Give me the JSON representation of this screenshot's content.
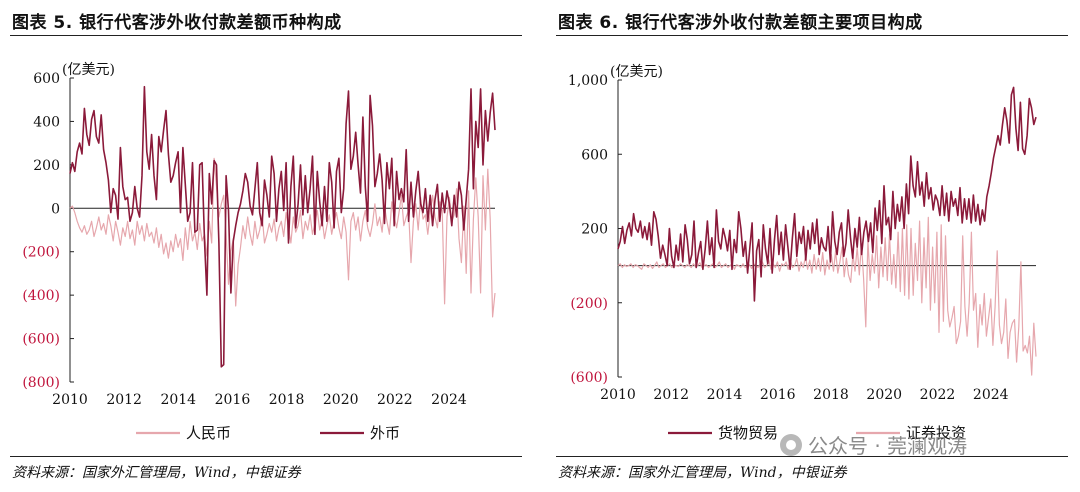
{
  "colors": {
    "dark_series": "#8B1A3A",
    "light_series": "#E6A7AD",
    "negative_tick": "#C0143C",
    "axis": "#222222"
  },
  "watermark": {
    "text": "公众号 · 莞澜观涛",
    "icon": "wechat-icon"
  },
  "chart_data": [
    {
      "type": "line",
      "title": "图表 5. 银行代客涉外收付款差额币种构成",
      "unit_label": "(亿美元)",
      "source": "资料来源：国家外汇管理局，Wind，中银证券",
      "ylim": [
        -800,
        600
      ],
      "yticks": [
        600,
        400,
        200,
        0,
        -200,
        -400,
        -600,
        -800
      ],
      "ytick_labels": [
        "600",
        "400",
        "200",
        "0",
        "(200)",
        "(400)",
        "(600)",
        "(800)"
      ],
      "xlim": [
        2010,
        2025.7
      ],
      "xticks": [
        "2010",
        "2012",
        "2014",
        "2016",
        "2018",
        "2020",
        "2022",
        "2024"
      ],
      "legend_position": "bottom",
      "series": [
        {
          "name": "人民币",
          "color": "#E6A7AD",
          "values": [
            0,
            10,
            -20,
            -60,
            -90,
            -110,
            -80,
            -120,
            -100,
            -60,
            -130,
            -90,
            -40,
            -100,
            -70,
            -120,
            -30,
            -80,
            -150,
            -60,
            -110,
            -170,
            -90,
            -130,
            -60,
            -140,
            -100,
            -170,
            -60,
            -120,
            -80,
            -150,
            -70,
            -130,
            -110,
            -160,
            -90,
            -180,
            -120,
            -210,
            -160,
            -230,
            -150,
            -200,
            -120,
            -180,
            -140,
            -240,
            -90,
            -190,
            -60,
            -150,
            -110,
            -190,
            -70,
            -150,
            -120,
            -220,
            -60,
            -160,
            230,
            100,
            -40,
            20,
            60,
            -120,
            -350,
            -200,
            -140,
            -450,
            -260,
            -180,
            -80,
            -140,
            -40,
            -120,
            -170,
            -60,
            -140,
            -100,
            -30,
            -160,
            -120,
            -70,
            -110,
            -50,
            -150,
            -90,
            -60,
            -130,
            -20,
            -90,
            -160,
            -40,
            -110,
            -80,
            -10,
            -140,
            -60,
            -100,
            -30,
            -120,
            -70,
            -10,
            -100,
            -50,
            -140,
            -80,
            -30,
            -120,
            -60,
            -20,
            -90,
            -140,
            -40,
            -110,
            -330,
            -60,
            -20,
            -100,
            -40,
            -150,
            -60,
            -10,
            -90,
            -130,
            -70,
            20,
            -80,
            -40,
            -110,
            10,
            -60,
            -120,
            30,
            -40,
            -90,
            -20,
            60,
            -80,
            -40,
            -10,
            -250,
            -60,
            20,
            -100,
            50,
            -50,
            -30,
            -120,
            -20,
            60,
            -40,
            -90,
            30,
            -10,
            -440,
            -40,
            50,
            -60,
            -30,
            90,
            -140,
            -250,
            10,
            -300,
            80,
            -390,
            -50,
            140,
            -40,
            -390,
            150,
            -100,
            180,
            -50,
            -500,
            -390
          ]
        },
        {
          "name": "外币",
          "color": "#8B1A3A",
          "values": [
            160,
            210,
            170,
            260,
            300,
            250,
            460,
            340,
            290,
            410,
            450,
            330,
            300,
            430,
            270,
            210,
            130,
            -20,
            90,
            60,
            -50,
            280,
            100,
            40,
            50,
            -60,
            -20,
            100,
            0,
            -40,
            150,
            560,
            260,
            180,
            340,
            150,
            40,
            330,
            260,
            360,
            450,
            250,
            120,
            150,
            210,
            260,
            -20,
            280,
            110,
            -60,
            -20,
            210,
            -110,
            -100,
            200,
            210,
            -150,
            -400,
            160,
            20,
            220,
            200,
            -160,
            -730,
            -720,
            150,
            -10,
            -390,
            -150,
            -80,
            -20,
            20,
            80,
            160,
            120,
            10,
            -30,
            90,
            210,
            -20,
            -80,
            130,
            60,
            -40,
            240,
            160,
            -60,
            90,
            170,
            -10,
            210,
            -160,
            100,
            240,
            -90,
            20,
            200,
            -30,
            150,
            -20,
            90,
            240,
            -120,
            170,
            30,
            -80,
            100,
            -60,
            210,
            120,
            -90,
            170,
            230,
            -20,
            90,
            390,
            540,
            180,
            240,
            350,
            200,
            70,
            420,
            100,
            -60,
            520,
            380,
            100,
            160,
            250,
            130,
            -70,
            210,
            90,
            230,
            -80,
            170,
            40,
            90,
            30,
            270,
            -60,
            120,
            -40,
            80,
            170,
            20,
            -20,
            90,
            -60,
            60,
            -80,
            40,
            110,
            -60,
            70,
            -20,
            80,
            20,
            -80,
            60,
            -40,
            120,
            60,
            -100,
            40,
            180,
            550,
            90,
            400,
            280,
            550,
            200,
            450,
            310,
            440,
            530,
            360
          ]
        }
      ]
    },
    {
      "type": "line",
      "title": "图表 6. 银行代客涉外收付款差额主要项目构成",
      "unit_label": "(亿美元)",
      "source": "资料来源：国家外汇管理局，Wind，中银证券",
      "ylim": [
        -600,
        1000
      ],
      "yticks": [
        1000,
        600,
        200,
        -200,
        -600
      ],
      "ytick_labels": [
        "1,000",
        "600",
        "200",
        "(200)",
        "(600)"
      ],
      "xlim": [
        2010,
        2025.7
      ],
      "xticks": [
        "2010",
        "2012",
        "2014",
        "2016",
        "2018",
        "2020",
        "2022",
        "2024"
      ],
      "legend_position": "bottom",
      "series": [
        {
          "name": "货物贸易",
          "color": "#8B1A3A",
          "values": [
            90,
            130,
            210,
            120,
            190,
            230,
            160,
            280,
            200,
            180,
            240,
            150,
            210,
            140,
            230,
            110,
            290,
            250,
            160,
            40,
            110,
            60,
            0,
            200,
            50,
            -10,
            110,
            30,
            170,
            20,
            220,
            140,
            10,
            60,
            240,
            -10,
            70,
            130,
            -20,
            90,
            240,
            60,
            150,
            -10,
            300,
            130,
            90,
            200,
            150,
            80,
            190,
            -20,
            140,
            70,
            290,
            200,
            50,
            130,
            -40,
            100,
            230,
            -190,
            80,
            140,
            -60,
            220,
            90,
            10,
            200,
            -40,
            140,
            270,
            60,
            180,
            30,
            220,
            100,
            -20,
            150,
            280,
            50,
            180,
            120,
            210,
            30,
            190,
            90,
            230,
            120,
            250,
            60,
            150,
            100,
            80,
            210,
            20,
            290,
            130,
            60,
            180,
            230,
            50,
            120,
            300,
            150,
            40,
            200,
            100,
            260,
            60,
            180,
            240,
            130,
            230,
            70,
            310,
            190,
            350,
            120,
            430,
            220,
            260,
            140,
            400,
            200,
            330,
            240,
            370,
            200,
            440,
            280,
            590,
            430,
            370,
            560,
            380,
            450,
            320,
            500,
            360,
            420,
            300,
            380,
            350,
            270,
            430,
            270,
            390,
            240,
            400,
            320,
            360,
            270,
            420,
            230,
            360,
            250,
            360,
            230,
            380,
            240,
            330,
            220,
            300,
            240,
            370,
            430,
            500,
            580,
            640,
            700,
            650,
            760,
            850,
            780,
            660,
            920,
            960,
            740,
            620,
            880,
            630,
            600,
            700,
            900,
            850,
            760,
            800
          ]
        },
        {
          "name": "证券投资",
          "color": "#E6A7AD",
          "values": [
            0,
            10,
            -10,
            5,
            -5,
            0,
            10,
            -10,
            5,
            0,
            -10,
            -20,
            10,
            0,
            -10,
            5,
            -15,
            0,
            20,
            -10,
            0,
            10,
            -10,
            0,
            10,
            -10,
            5,
            0,
            -5,
            10,
            0,
            -10,
            5,
            0,
            -10,
            10,
            -5,
            0,
            15,
            -10,
            0,
            5,
            -10,
            0,
            10,
            -10,
            0,
            20,
            -10,
            0,
            10,
            -10,
            0,
            10,
            -20,
            5,
            0,
            -10,
            10,
            -10,
            0,
            5,
            -15,
            10,
            0,
            -10,
            10,
            20,
            -10,
            0,
            30,
            -20,
            10,
            -10,
            20,
            -30,
            10,
            0,
            20,
            -20,
            30,
            -10,
            0,
            40,
            -30,
            20,
            -10,
            50,
            -20,
            30,
            -40,
            60,
            -20,
            40,
            -30,
            70,
            -50,
            30,
            -20,
            60,
            -30,
            80,
            -40,
            20,
            100,
            -60,
            40,
            -50,
            -90,
            60,
            -30,
            100,
            -50,
            120,
            -70,
            -330,
            140,
            -80,
            60,
            -40,
            160,
            -120,
            100,
            -60,
            150,
            -80,
            170,
            -100,
            60,
            -120,
            180,
            -140,
            200,
            -160,
            220,
            -180,
            200,
            -160,
            120,
            -80,
            240,
            -200,
            150,
            -120,
            260,
            -240,
            100,
            -200,
            180,
            -360,
            220,
            -300,
            160,
            -240,
            -330,
            -280,
            -220,
            -420,
            -380,
            -300,
            160,
            -220,
            -380,
            -200,
            180,
            -240,
            -150,
            -440,
            -210,
            -320,
            -150,
            -380,
            -280,
            -180,
            -430,
            -220,
            80,
            -320,
            -420,
            -360,
            -180,
            -500,
            -360,
            -310,
            -290,
            -520,
            -330,
            20,
            -460,
            -430,
            -470,
            -380,
            -590,
            -310,
            -490
          ]
        }
      ]
    }
  ]
}
